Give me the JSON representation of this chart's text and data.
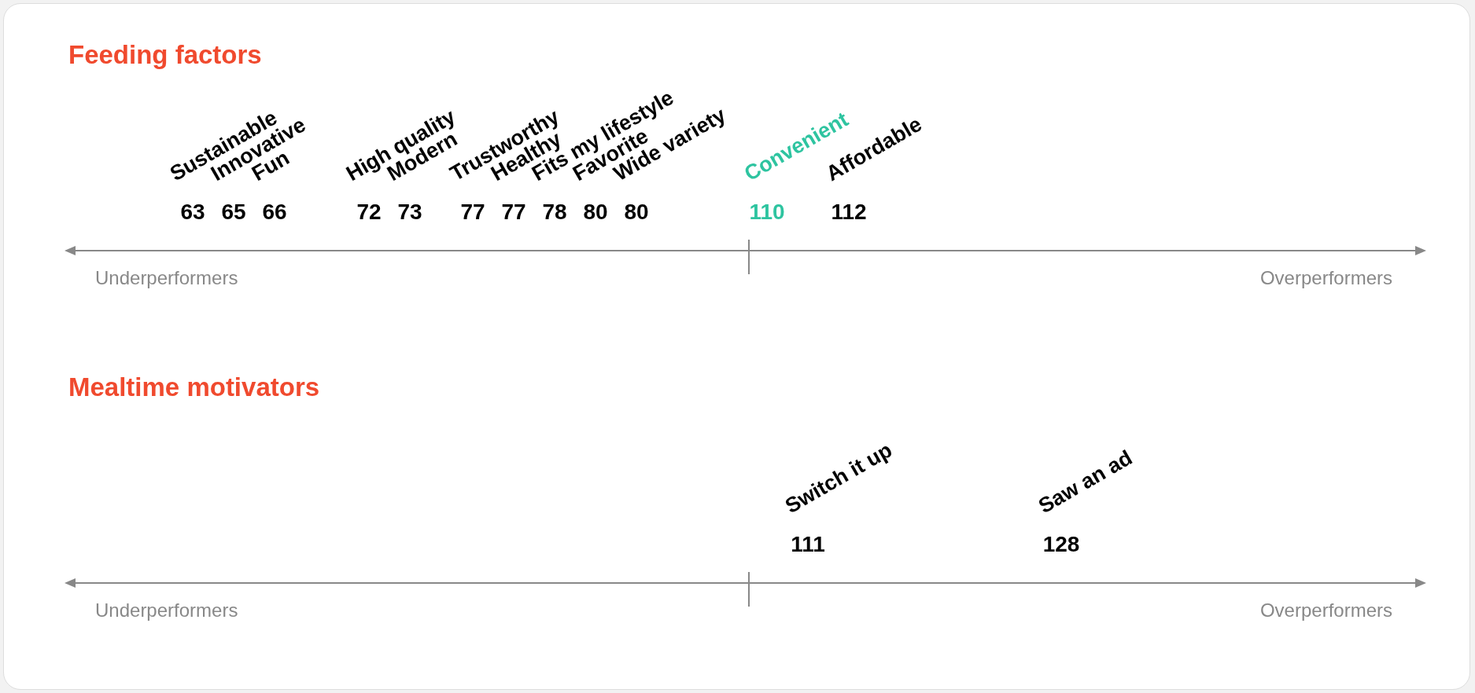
{
  "chart_data": [
    {
      "type": "other",
      "title": "Feeding factors",
      "categories": [
        "Sustainable",
        "Innovative",
        "Fun",
        "High quality",
        "Modern",
        "Trustworthy",
        "Healthy",
        "Fits my lifestyle",
        "Favorite",
        "Wide variety",
        "Convenient",
        "Affordable"
      ],
      "values": [
        63,
        65,
        66,
        72,
        73,
        77,
        77,
        78,
        80,
        80,
        110,
        112
      ],
      "colors": [
        "#000000",
        "#000000",
        "#000000",
        "#000000",
        "#000000",
        "#000000",
        "#000000",
        "#000000",
        "#000000",
        "#000000",
        "#2ec4a0",
        "#000000"
      ],
      "data_labels": true,
      "annotations": [
        "Underperformers",
        "Overperformers"
      ]
    },
    {
      "type": "other",
      "title": "Mealtime motivators",
      "categories": [
        "Switch it up",
        "Saw an ad"
      ],
      "values": [
        111,
        128
      ],
      "colors": [
        "#000000",
        "#000000"
      ],
      "data_labels": true,
      "annotations": [
        "Underperformers",
        "Overperformers"
      ]
    }
  ]
}
